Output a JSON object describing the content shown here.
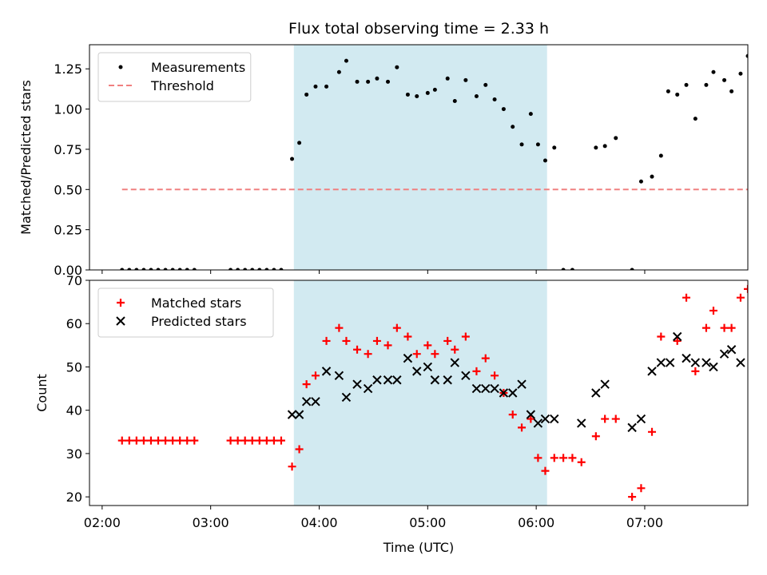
{
  "chart_data": {
    "title": "Flux total observing time = 2.33 h",
    "xlabel": "Time (UTC)",
    "xlim": [
      "01:53",
      "07:57"
    ],
    "xticks": [
      "02:00",
      "03:00",
      "04:00",
      "05:00",
      "06:00",
      "07:00"
    ],
    "observing_window": {
      "start": "03:46",
      "end": "06:06",
      "color": "#add8e6"
    },
    "panels": [
      {
        "type": "scatter",
        "ylabel": "Matched/Predicted stars",
        "ylim": [
          0,
          1.4
        ],
        "yticks": [
          "0.00",
          "0.25",
          "0.50",
          "0.75",
          "1.00",
          "1.25"
        ],
        "legend_position": "top-left",
        "series": [
          {
            "name": "Measurements",
            "marker": "dot",
            "color": "#000000",
            "points": [
              [
                "02:11",
                0
              ],
              [
                "02:15",
                0
              ],
              [
                "02:19",
                0
              ],
              [
                "02:23",
                0
              ],
              [
                "02:27",
                0
              ],
              [
                "02:31",
                0
              ],
              [
                "02:35",
                0
              ],
              [
                "02:39",
                0
              ],
              [
                "02:43",
                0
              ],
              [
                "02:47",
                0
              ],
              [
                "02:51",
                0
              ],
              [
                "03:11",
                0
              ],
              [
                "03:15",
                0
              ],
              [
                "03:19",
                0
              ],
              [
                "03:23",
                0
              ],
              [
                "03:27",
                0
              ],
              [
                "03:31",
                0
              ],
              [
                "03:35",
                0
              ],
              [
                "03:39",
                0
              ],
              [
                "03:45",
                0.69
              ],
              [
                "03:49",
                0.79
              ],
              [
                "03:53",
                1.09
              ],
              [
                "03:58",
                1.14
              ],
              [
                "04:04",
                1.14
              ],
              [
                "04:11",
                1.23
              ],
              [
                "04:15",
                1.3
              ],
              [
                "04:21",
                1.17
              ],
              [
                "04:27",
                1.17
              ],
              [
                "04:32",
                1.19
              ],
              [
                "04:38",
                1.17
              ],
              [
                "04:43",
                1.26
              ],
              [
                "04:49",
                1.09
              ],
              [
                "04:54",
                1.08
              ],
              [
                "05:00",
                1.1
              ],
              [
                "05:04",
                1.12
              ],
              [
                "05:11",
                1.19
              ],
              [
                "05:15",
                1.05
              ],
              [
                "05:21",
                1.18
              ],
              [
                "05:27",
                1.08
              ],
              [
                "05:32",
                1.15
              ],
              [
                "05:37",
                1.06
              ],
              [
                "05:42",
                1.0
              ],
              [
                "05:47",
                0.89
              ],
              [
                "05:52",
                0.78
              ],
              [
                "05:57",
                0.97
              ],
              [
                "06:01",
                0.78
              ],
              [
                "06:05",
                0.68
              ],
              [
                "06:10",
                0.76
              ],
              [
                "06:15",
                0
              ],
              [
                "06:20",
                0
              ],
              [
                "06:33",
                0.76
              ],
              [
                "06:38",
                0.77
              ],
              [
                "06:44",
                0.82
              ],
              [
                "06:53",
                0
              ],
              [
                "06:58",
                0.55
              ],
              [
                "07:04",
                0.58
              ],
              [
                "07:09",
                0.71
              ],
              [
                "07:13",
                1.11
              ],
              [
                "07:18",
                1.09
              ],
              [
                "07:23",
                1.15
              ],
              [
                "07:28",
                0.94
              ],
              [
                "07:34",
                1.15
              ],
              [
                "07:38",
                1.23
              ],
              [
                "07:44",
                1.18
              ],
              [
                "07:48",
                1.11
              ],
              [
                "07:53",
                1.22
              ],
              [
                "07:57",
                1.33
              ]
            ]
          },
          {
            "name": "Threshold",
            "marker": "dashed-line",
            "color": "#f08080",
            "points": [
              [
                "02:11",
                0.5
              ],
              [
                "07:57",
                0.5
              ]
            ]
          }
        ]
      },
      {
        "type": "scatter",
        "ylabel": "Count",
        "ylim": [
          18,
          70
        ],
        "yticks": [
          "20",
          "30",
          "40",
          "50",
          "60",
          "70"
        ],
        "legend_position": "top-left",
        "series": [
          {
            "name": "Matched stars",
            "marker": "plus",
            "color": "#ff0000",
            "points": [
              [
                "02:11",
                33
              ],
              [
                "02:15",
                33
              ],
              [
                "02:19",
                33
              ],
              [
                "02:23",
                33
              ],
              [
                "02:27",
                33
              ],
              [
                "02:31",
                33
              ],
              [
                "02:35",
                33
              ],
              [
                "02:39",
                33
              ],
              [
                "02:43",
                33
              ],
              [
                "02:47",
                33
              ],
              [
                "02:51",
                33
              ],
              [
                "03:11",
                33
              ],
              [
                "03:15",
                33
              ],
              [
                "03:19",
                33
              ],
              [
                "03:23",
                33
              ],
              [
                "03:27",
                33
              ],
              [
                "03:31",
                33
              ],
              [
                "03:35",
                33
              ],
              [
                "03:39",
                33
              ],
              [
                "03:45",
                27
              ],
              [
                "03:49",
                31
              ],
              [
                "03:53",
                46
              ],
              [
                "03:58",
                48
              ],
              [
                "04:04",
                56
              ],
              [
                "04:11",
                59
              ],
              [
                "04:15",
                56
              ],
              [
                "04:21",
                54
              ],
              [
                "04:27",
                53
              ],
              [
                "04:32",
                56
              ],
              [
                "04:38",
                55
              ],
              [
                "04:43",
                59
              ],
              [
                "04:49",
                57
              ],
              [
                "04:54",
                53
              ],
              [
                "05:00",
                55
              ],
              [
                "05:04",
                53
              ],
              [
                "05:11",
                56
              ],
              [
                "05:15",
                54
              ],
              [
                "05:21",
                57
              ],
              [
                "05:27",
                49
              ],
              [
                "05:32",
                52
              ],
              [
                "05:37",
                48
              ],
              [
                "05:42",
                44
              ],
              [
                "05:47",
                39
              ],
              [
                "05:52",
                36
              ],
              [
                "05:57",
                38
              ],
              [
                "06:01",
                29
              ],
              [
                "06:05",
                26
              ],
              [
                "06:10",
                29
              ],
              [
                "06:15",
                29
              ],
              [
                "06:20",
                29
              ],
              [
                "06:25",
                28
              ],
              [
                "06:33",
                34
              ],
              [
                "06:38",
                38
              ],
              [
                "06:44",
                38
              ],
              [
                "06:53",
                20
              ],
              [
                "06:58",
                22
              ],
              [
                "07:04",
                35
              ],
              [
                "07:09",
                57
              ],
              [
                "07:18",
                56
              ],
              [
                "07:23",
                66
              ],
              [
                "07:28",
                49
              ],
              [
                "07:34",
                59
              ],
              [
                "07:38",
                63
              ],
              [
                "07:44",
                59
              ],
              [
                "07:48",
                59
              ],
              [
                "07:53",
                66
              ],
              [
                "07:57",
                68
              ]
            ]
          },
          {
            "name": "Predicted stars",
            "marker": "x",
            "color": "#000000",
            "points": [
              [
                "03:45",
                39
              ],
              [
                "03:49",
                39
              ],
              [
                "03:53",
                42
              ],
              [
                "03:58",
                42
              ],
              [
                "04:04",
                49
              ],
              [
                "04:11",
                48
              ],
              [
                "04:15",
                43
              ],
              [
                "04:21",
                46
              ],
              [
                "04:27",
                45
              ],
              [
                "04:32",
                47
              ],
              [
                "04:38",
                47
              ],
              [
                "04:43",
                47
              ],
              [
                "04:49",
                52
              ],
              [
                "04:54",
                49
              ],
              [
                "05:00",
                50
              ],
              [
                "05:04",
                47
              ],
              [
                "05:11",
                47
              ],
              [
                "05:15",
                51
              ],
              [
                "05:21",
                48
              ],
              [
                "05:27",
                45
              ],
              [
                "05:32",
                45
              ],
              [
                "05:37",
                45
              ],
              [
                "05:42",
                44
              ],
              [
                "05:47",
                44
              ],
              [
                "05:52",
                46
              ],
              [
                "05:57",
                39
              ],
              [
                "06:01",
                37
              ],
              [
                "06:05",
                38
              ],
              [
                "06:10",
                38
              ],
              [
                "06:25",
                37
              ],
              [
                "06:33",
                44
              ],
              [
                "06:38",
                46
              ],
              [
                "06:53",
                36
              ],
              [
                "06:58",
                38
              ],
              [
                "07:04",
                49
              ],
              [
                "07:09",
                51
              ],
              [
                "07:14",
                51
              ],
              [
                "07:18",
                57
              ],
              [
                "07:23",
                52
              ],
              [
                "07:28",
                51
              ],
              [
                "07:34",
                51
              ],
              [
                "07:38",
                50
              ],
              [
                "07:44",
                53
              ],
              [
                "07:48",
                54
              ],
              [
                "07:53",
                51
              ]
            ]
          }
        ]
      }
    ]
  }
}
